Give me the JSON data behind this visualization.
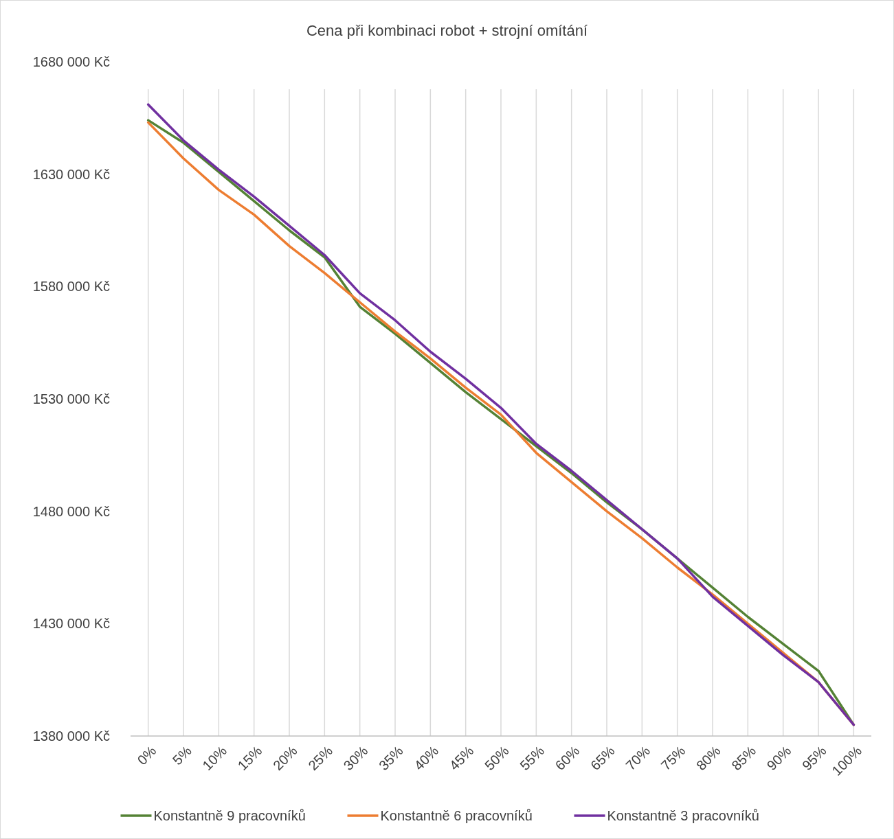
{
  "chart_data": {
    "type": "line",
    "title": "Cena při kombinaci robot + strojní omítání",
    "categories": [
      "0%",
      "5%",
      "10%",
      "15%",
      "20%",
      "25%",
      "30%",
      "35%",
      "40%",
      "45%",
      "50%",
      "55%",
      "60%",
      "65%",
      "70%",
      "75%",
      "80%",
      "85%",
      "90%",
      "95%",
      "100%"
    ],
    "series": [
      {
        "name": "Konstantně 9 pracovníků",
        "color": "#548235",
        "values": [
          1654000,
          1644000,
          1631000,
          1618000,
          1605000,
          1593000,
          1571000,
          1559000,
          1546000,
          1533000,
          1521000,
          1509000,
          1497000,
          1484000,
          1472000,
          1459000,
          1446000,
          1433000,
          1421000,
          1409000,
          1385000
        ]
      },
      {
        "name": "Konstantně 6 pracovníků",
        "color": "#ed7d31",
        "values": [
          1653000,
          1637000,
          1623000,
          1612000,
          1598000,
          1586000,
          1573000,
          1560000,
          1548000,
          1535000,
          1523000,
          1506000,
          1493000,
          1480000,
          1468000,
          1455000,
          1443000,
          1430000,
          1417000,
          1404000,
          1385000
        ]
      },
      {
        "name": "Konstantně 3 pracovníků",
        "color": "#7030a0",
        "values": [
          1661000,
          1645000,
          1632000,
          1620000,
          1607000,
          1594000,
          1577000,
          1565000,
          1551000,
          1539000,
          1526000,
          1510000,
          1498000,
          1485000,
          1472000,
          1459000,
          1442000,
          1429000,
          1416000,
          1404000,
          1385000
        ]
      }
    ],
    "ylim": [
      1380000,
      1680000
    ],
    "yticks": [
      {
        "value": 1380000,
        "label": "1380 000 Kč"
      },
      {
        "value": 1430000,
        "label": "1430 000 Kč"
      },
      {
        "value": 1480000,
        "label": "1480 000 Kč"
      },
      {
        "value": 1530000,
        "label": "1530 000 Kč"
      },
      {
        "value": 1580000,
        "label": "1580 000 Kč"
      },
      {
        "value": 1630000,
        "label": "1630 000 Kč"
      },
      {
        "value": 1680000,
        "label": "1680 000 Kč"
      }
    ],
    "grid": "x",
    "legend": "bottom",
    "marker": "none",
    "line_style": "solid"
  }
}
